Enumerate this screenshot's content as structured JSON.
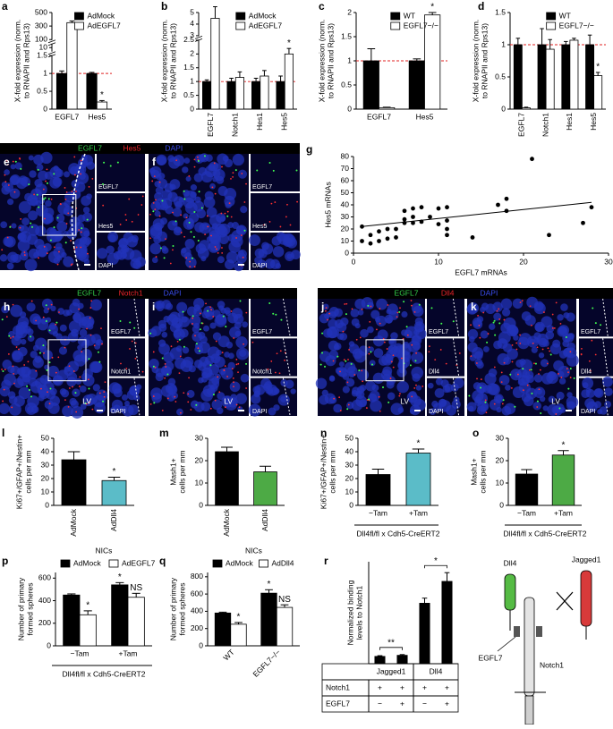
{
  "chart_data": [
    {
      "type": "bar",
      "letter": "a",
      "ylabel": [
        "X-fold expression (norm.",
        "to RNAPII and Rps13)"
      ],
      "categories": [
        "EGFL7",
        "Hes5"
      ],
      "series": [
        {
          "name": "AdMock",
          "color": "#000000",
          "values": [
            1.0,
            1.0
          ],
          "errors": [
            0.07,
            0.03
          ]
        },
        {
          "name": "AdEGFL7",
          "color": "#ffffff",
          "values": [
            350,
            0.2
          ],
          "errors": [
            25,
            0.04
          ],
          "marks": [
            null,
            "*"
          ]
        }
      ],
      "ysegments": [
        [
          0,
          1.5
        ],
        [
          10,
          10
        ],
        [
          100,
          500
        ]
      ],
      "yticks": [
        0,
        0.5,
        1,
        1.5,
        10,
        100,
        300,
        500
      ],
      "refline": 1,
      "legend": "top-right"
    },
    {
      "type": "bar",
      "letter": "b",
      "ylabel": [
        "X-fold expression (norm.",
        "to RNAPII and Rps13)"
      ],
      "categories": [
        "EGFL7",
        "Notch1",
        "Hes1",
        "Hes5"
      ],
      "series": [
        {
          "name": "AdMock",
          "color": "#000000",
          "values": [
            1.0,
            1.0,
            1.0,
            1.0
          ],
          "errors": [
            0.06,
            0.12,
            0.12,
            0.2
          ]
        },
        {
          "name": "AdEGFL7",
          "color": "#ffffff",
          "values": [
            4.5,
            1.15,
            1.2,
            2.0
          ],
          "errors": [
            1.0,
            0.2,
            0.2,
            0.2
          ],
          "marks": [
            null,
            null,
            null,
            "*"
          ]
        }
      ],
      "ysegments": [
        [
          0,
          2.5
        ],
        [
          3,
          5
        ]
      ],
      "yticks": [
        0,
        0.5,
        1,
        1.5,
        2,
        2.5,
        3,
        4,
        5
      ],
      "refline": 1,
      "legend": "top-right"
    },
    {
      "type": "bar",
      "letter": "c",
      "ylabel": [
        "X-fold expression (norm.",
        "to RNAPII and Rps13)"
      ],
      "categories": [
        "EGFL7",
        "Hes5"
      ],
      "series": [
        {
          "name": "WT",
          "color": "#000000",
          "values": [
            1.0,
            1.0
          ],
          "errors": [
            0.25,
            0.04
          ]
        },
        {
          "name": "EGFL7−/−",
          "color": "#ffffff",
          "values": [
            0.03,
            1.95
          ],
          "errors": [
            0.01,
            0.05
          ],
          "marks": [
            null,
            "*"
          ]
        }
      ],
      "ylim": [
        0,
        2
      ],
      "yticks": [
        0,
        0.5,
        1,
        1.5,
        2
      ],
      "refline": 1,
      "legend": "top-right"
    },
    {
      "type": "bar",
      "letter": "d",
      "ylabel": [
        "X-fold expression (norm.",
        "to RNAPII and Rps13)"
      ],
      "categories": [
        "EGFL7",
        "Notch1",
        "Hes1",
        "Hes5"
      ],
      "series": [
        {
          "name": "WT",
          "color": "#000000",
          "values": [
            1.0,
            1.0,
            1.0,
            1.0
          ],
          "errors": [
            0.1,
            0.25,
            0.05,
            0.15
          ]
        },
        {
          "name": "EGFL7−/−",
          "color": "#ffffff",
          "values": [
            0.02,
            0.93,
            1.07,
            0.52
          ],
          "errors": [
            0.01,
            0.15,
            0.03,
            0.05
          ],
          "marks": [
            null,
            null,
            null,
            "*"
          ]
        }
      ],
      "ylim": [
        0,
        1.5
      ],
      "yticks": [
        0,
        0.5,
        1,
        1.5
      ],
      "refline": 1,
      "legend": "top-right"
    },
    {
      "type": "scatter",
      "letter": "g",
      "ylabel": [
        "Hes5 mRNAs"
      ],
      "xlabel": "EGFL7 mRNAs",
      "x": [
        1,
        1,
        2,
        2,
        3,
        3,
        4,
        4,
        5,
        5,
        6,
        6,
        6,
        7,
        7,
        7,
        8,
        8,
        9,
        10,
        10,
        11,
        11,
        11,
        11,
        14,
        17,
        18,
        18,
        21,
        23,
        27,
        28
      ],
      "y": [
        10,
        22,
        8,
        15,
        10,
        18,
        12,
        20,
        13,
        20,
        25,
        35,
        28,
        30,
        37,
        25,
        38,
        26,
        30,
        24,
        37,
        38,
        27,
        20,
        15,
        13,
        40,
        45,
        35,
        78,
        15,
        25,
        38
      ],
      "trendline": {
        "x": [
          1,
          28
        ],
        "y": [
          22,
          42
        ]
      },
      "color": "#000000",
      "xlim": [
        0,
        30
      ],
      "xticks": [
        0,
        10,
        20,
        30
      ],
      "ylim": [
        0,
        80
      ],
      "yticks": [
        0,
        10,
        20,
        30,
        40,
        50,
        60,
        70,
        80
      ]
    },
    {
      "type": "bar",
      "letter": "l",
      "ylabel": [
        "Ki67+/GFAP+/Nestin+",
        "cells per mm"
      ],
      "categories": [
        "AdMock",
        "AdDll4"
      ],
      "values": [
        34,
        18.5
      ],
      "errors": [
        6,
        2.5
      ],
      "colors": [
        "#000000",
        "#5bbcc8"
      ],
      "marks": [
        null,
        "*"
      ],
      "ylim": [
        0,
        50
      ],
      "yticks": [
        0,
        10,
        20,
        30,
        40,
        50
      ]
    },
    {
      "type": "bar",
      "letter": "m",
      "ylabel": [
        "Mash1+",
        "cells per mm"
      ],
      "categories": [
        "AdMock",
        "AdDll4"
      ],
      "values": [
        24,
        15
      ],
      "errors": [
        2,
        2.5
      ],
      "colors": [
        "#000000",
        "#4daa45"
      ],
      "ylim": [
        0,
        30
      ],
      "yticks": [
        0,
        10,
        20,
        30
      ]
    },
    {
      "type": "bar",
      "letter": "n",
      "ylabel": [
        "Ki67+/GFAP+/Nestin+",
        "cells per mm"
      ],
      "categories": [
        "−Tam",
        "+Tam"
      ],
      "xlabel": "Dll4fl/fl x Cdh5-CreERT2",
      "values": [
        23,
        39
      ],
      "errors": [
        4,
        3
      ],
      "colors": [
        "#000000",
        "#5bbcc8"
      ],
      "marks": [
        null,
        "*"
      ],
      "ylim": [
        0,
        50
      ],
      "yticks": [
        0,
        10,
        20,
        30,
        40,
        50
      ]
    },
    {
      "type": "bar",
      "letter": "o",
      "ylabel": [
        "Mash1+",
        "cells per mm"
      ],
      "categories": [
        "−Tam",
        "+Tam"
      ],
      "xlabel": "Dll4fl/fl x Cdh5-CreERT2",
      "values": [
        14,
        22.5
      ],
      "errors": [
        2,
        2
      ],
      "colors": [
        "#000000",
        "#4daa45"
      ],
      "marks": [
        null,
        "*"
      ],
      "ylim": [
        0,
        30
      ],
      "yticks": [
        0,
        10,
        20,
        30
      ]
    },
    {
      "type": "bar",
      "letter": "p",
      "title": "NICs",
      "ylabel": [
        "Number of primary",
        "formed spheres"
      ],
      "categories": [
        "−Tam",
        "+Tam"
      ],
      "xlabel": "Dll4fl/fl x Cdh5-CreERT2",
      "series": [
        {
          "name": "AdMock",
          "color": "#000000",
          "values": [
            450,
            540
          ],
          "errors": [
            10,
            20
          ],
          "marks": [
            null,
            "*"
          ]
        },
        {
          "name": "AdEGFL7",
          "color": "#ffffff",
          "values": [
            275,
            430
          ],
          "errors": [
            35,
            35
          ],
          "marks": [
            "*",
            "NS"
          ]
        }
      ],
      "ylim": [
        0,
        650
      ],
      "yticks": [
        0,
        200,
        400,
        600
      ],
      "legend": "top"
    },
    {
      "type": "bar",
      "letter": "q",
      "title": "NICs",
      "ylabel": [
        "Number of primary",
        "formed spheres"
      ],
      "categories": [
        "WT",
        "EGFL7−/−"
      ],
      "series": [
        {
          "name": "AdMock",
          "color": "#000000",
          "values": [
            380,
            610
          ],
          "errors": [
            10,
            40
          ],
          "marks": [
            null,
            "*"
          ]
        },
        {
          "name": "AdDll4",
          "color": "#ffffff",
          "values": [
            250,
            445
          ],
          "errors": [
            20,
            30
          ],
          "marks": [
            "*",
            "NS"
          ]
        }
      ],
      "ylim": [
        0,
        850
      ],
      "yticks": [
        0,
        200,
        400,
        600,
        800
      ],
      "legend": "top"
    },
    {
      "type": "bar",
      "letter": "r",
      "ylabel": [
        "Normalized binding",
        "levels to Notch1"
      ],
      "values": [
        1.0,
        1.15,
        8.3,
        11.3
      ],
      "errors": [
        0.1,
        0.1,
        0.7,
        1.2
      ],
      "color": "#000000",
      "ylim": [
        0,
        14
      ],
      "groups": [
        "Jagged1",
        "Dll4"
      ],
      "significance": [
        "**",
        "*"
      ],
      "table": [
        {
          "label": "Notch1",
          "cells": [
            "+",
            "+",
            "+",
            "+"
          ]
        },
        {
          "label": "EGFL7",
          "cells": [
            "−",
            "+",
            "−",
            "+"
          ]
        }
      ]
    }
  ],
  "image_rows": [
    {
      "channels": [
        {
          "name": "EGFL7",
          "color": "#33d04a"
        },
        {
          "name": "Hes5",
          "color": "#e8232a"
        },
        {
          "name": "DAPI",
          "color": "#3a4cf0"
        }
      ],
      "panels": [
        {
          "letter": "e",
          "insets": [
            "EGFL7",
            "Hes5",
            "DAPI"
          ]
        },
        {
          "letter": "f",
          "insets": [
            "EGFL7",
            "Hes5",
            "DAPI"
          ]
        }
      ]
    },
    {
      "channels": [
        {
          "name": "EGFL7",
          "color": "#33d04a"
        },
        {
          "name": "Notch1",
          "color": "#e8232a"
        },
        {
          "name": "DAPI",
          "color": "#3a4cf0"
        }
      ],
      "panels": [
        {
          "letter": "h",
          "label": "LV",
          "insets": [
            "EGFL7",
            "Notch1",
            "DAPI"
          ]
        },
        {
          "letter": "i",
          "label": "LV",
          "insets": [
            "EGFL7",
            "Notch1",
            "DAPI"
          ]
        }
      ]
    },
    {
      "channels": [
        {
          "name": "EGFL7",
          "color": "#33d04a"
        },
        {
          "name": "Dll4",
          "color": "#e8232a"
        },
        {
          "name": "DAPI",
          "color": "#3a4cf0"
        }
      ],
      "panels": [
        {
          "letter": "j",
          "label": "LV",
          "insets": [
            "EGFL7",
            "Dll4",
            "DAPI"
          ]
        },
        {
          "letter": "k",
          "label": "LV",
          "insets": [
            "EGFL7",
            "Dll4",
            "DAPI"
          ]
        }
      ]
    }
  ],
  "diagram": {
    "ligand1": "Dll4",
    "ligand2": "Jagged1",
    "modulator": "EGFL7",
    "receptor": "Notch1"
  }
}
